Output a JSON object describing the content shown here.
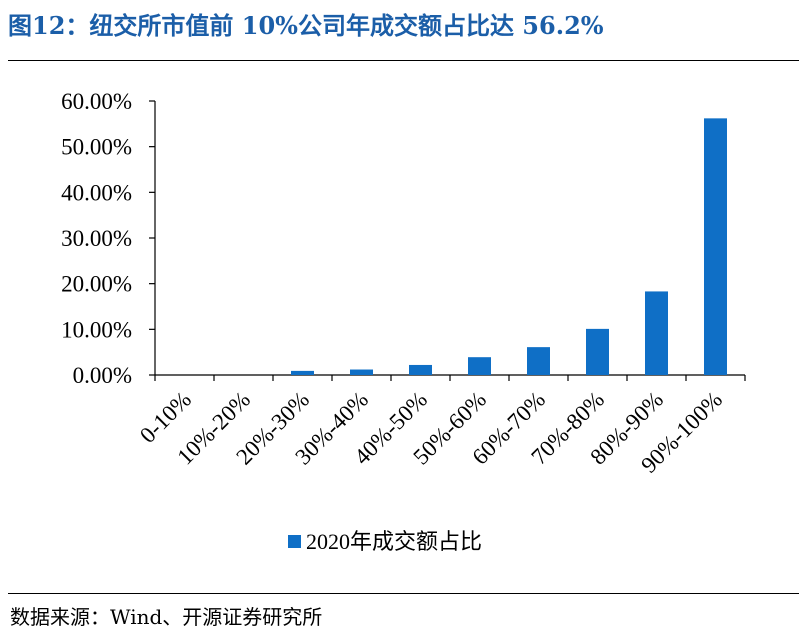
{
  "header": {
    "title": "图12：纽交所市值前 10%公司年成交额占比达 56.2%"
  },
  "footer": {
    "source": "数据来源：Wind、开源证券研究所"
  },
  "chart_data": {
    "type": "bar",
    "title": "",
    "xlabel": "",
    "ylabel": "",
    "categories": [
      "0-10%",
      "10%-20%",
      "20%-30%",
      "30%-40%",
      "40%-50%",
      "50%-60%",
      "60%-70%",
      "70%-80%",
      "80%-90%",
      "90%-100%"
    ],
    "series": [
      {
        "name": "2020年成交额占比",
        "values": [
          0.0,
          0.0,
          0.9,
          1.2,
          2.2,
          3.9,
          6.1,
          10.1,
          18.3,
          56.2
        ]
      }
    ],
    "ylim": [
      0,
      60
    ],
    "yticks": [
      "0.00%",
      "10.00%",
      "20.00%",
      "30.00%",
      "40.00%",
      "50.00%",
      "60.00%"
    ],
    "grid": false,
    "legend_position": "bottom",
    "colors": {
      "bar": "#0f6fc6",
      "title": "#1b5ea8",
      "axis": "#000000"
    }
  }
}
